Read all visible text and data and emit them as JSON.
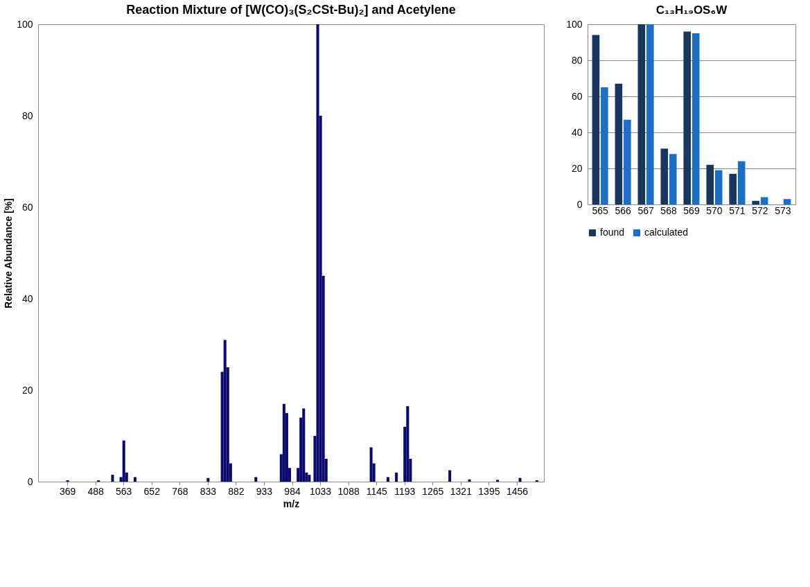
{
  "chart_data": [
    {
      "type": "bar",
      "title": "Reaction Mixture of [W(CO)₃(S₂CSt-Bu)₂] and Acetylene",
      "xlabel": "m/z",
      "ylabel": "Relative Abundance [%]",
      "categories": [
        null,
        null,
        null,
        null,
        null,
        null,
        null,
        null,
        null,
        null,
        "369",
        null,
        null,
        null,
        null,
        null,
        null,
        null,
        null,
        null,
        "488",
        null,
        null,
        null,
        null,
        null,
        null,
        null,
        null,
        null,
        "563",
        null,
        null,
        null,
        null,
        null,
        null,
        null,
        null,
        null,
        "652",
        null,
        null,
        null,
        null,
        null,
        null,
        null,
        null,
        null,
        "768",
        null,
        null,
        null,
        null,
        null,
        null,
        null,
        null,
        null,
        "833",
        null,
        null,
        null,
        null,
        null,
        null,
        null,
        null,
        null,
        "882",
        null,
        null,
        null,
        null,
        null,
        null,
        null,
        null,
        null,
        "933",
        null,
        null,
        null,
        null,
        null,
        null,
        null,
        null,
        null,
        "984",
        null,
        null,
        null,
        null,
        null,
        null,
        null,
        null,
        null,
        "1033",
        null,
        null,
        null,
        null,
        null,
        null,
        null,
        null,
        null,
        "1088",
        null,
        null,
        null,
        null,
        null,
        null,
        null,
        null,
        null,
        "1145",
        null,
        null,
        null,
        null,
        null,
        null,
        null,
        null,
        null,
        "1193",
        null,
        null,
        null,
        null,
        null,
        null,
        null,
        null,
        null,
        "1265",
        null,
        null,
        null,
        null,
        null,
        null,
        null,
        null,
        null,
        "1321",
        null,
        null,
        null,
        null,
        null,
        null,
        null,
        null,
        null,
        "1395",
        null,
        null,
        null,
        null,
        null,
        null,
        null,
        null,
        null,
        "1456",
        null,
        null,
        null,
        null,
        null,
        null,
        null,
        null,
        null
      ],
      "values": [
        0,
        0,
        0,
        0,
        0,
        0,
        0,
        0,
        0,
        0,
        0.3,
        0,
        0,
        0,
        0,
        0,
        0,
        0,
        0,
        0,
        0,
        0.3,
        0,
        0,
        0,
        0,
        1.5,
        0,
        0,
        1,
        9,
        2,
        0,
        0,
        1,
        0,
        0,
        0,
        0,
        0,
        0,
        0,
        0,
        0,
        0,
        0,
        0,
        0,
        0,
        0,
        0,
        0,
        0,
        0,
        0,
        0,
        0,
        0,
        0,
        0,
        0.8,
        0,
        0,
        0,
        0,
        24,
        31,
        25,
        4,
        0,
        0,
        0,
        0,
        0,
        0,
        0,
        0,
        1,
        0,
        0,
        0,
        0,
        0,
        0,
        0,
        0,
        6,
        17,
        15,
        3,
        0,
        0,
        3,
        14,
        16,
        2,
        1.5,
        0,
        10,
        100,
        80,
        45,
        5,
        0,
        0,
        0,
        0,
        0,
        0,
        0,
        0,
        0,
        0,
        0,
        0,
        0,
        0,
        0,
        7.5,
        4,
        0,
        0,
        0,
        0,
        1,
        0,
        0,
        2,
        0,
        0,
        12,
        16.5,
        5,
        0,
        0,
        0,
        0,
        0,
        0,
        0,
        0,
        0,
        0,
        0,
        0,
        0,
        2.5,
        0,
        0,
        0,
        0,
        0,
        0,
        0.5,
        0,
        0,
        0,
        0,
        0,
        0,
        0,
        0,
        0,
        0.4,
        0,
        0,
        0,
        0,
        0,
        0,
        0,
        0.8,
        0,
        0,
        0,
        0,
        0,
        0.3,
        0,
        0
      ],
      "color": "#0a0a6e",
      "ylim": [
        0,
        100
      ],
      "yticks": [
        0,
        20,
        40,
        60,
        80,
        100
      ],
      "grid": false,
      "legend": false
    },
    {
      "type": "bar",
      "title": "C₁₃H₁₉OS₆W",
      "categories": [
        "565",
        "566",
        "567",
        "568",
        "569",
        "570",
        "571",
        "572",
        "573"
      ],
      "series": [
        {
          "name": "found",
          "color": "#17375e",
          "values": [
            94,
            67,
            100,
            31,
            96,
            22,
            17,
            2,
            null
          ]
        },
        {
          "name": "calculated",
          "color": "#1a70c8",
          "values": [
            65,
            47,
            100,
            28,
            95,
            19,
            24,
            4,
            3
          ]
        }
      ],
      "ylim": [
        0,
        100
      ],
      "yticks": [
        0,
        20,
        40,
        60,
        80,
        100
      ],
      "grid": "y",
      "legend": "bottom"
    }
  ]
}
